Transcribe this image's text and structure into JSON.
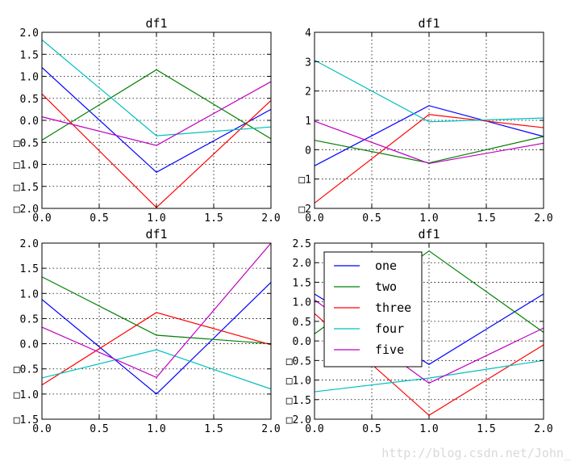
{
  "chart_data": [
    {
      "type": "line",
      "title": "df1",
      "xlabel": "",
      "ylabel": "",
      "x": [
        0,
        1,
        2
      ],
      "xlim": [
        0,
        2
      ],
      "ylim": [
        -2,
        2
      ],
      "xticks": [
        0,
        0.5,
        1,
        1.5,
        2
      ],
      "xtick_labels": [
        "0.0",
        "0.5",
        "1.0",
        "1.5",
        "2.0"
      ],
      "yticks": [
        -2,
        -1.5,
        -1,
        -0.5,
        0,
        0.5,
        1,
        1.5,
        2
      ],
      "ytick_labels": [
        "□2.0",
        "□1.5",
        "□1.0",
        "□0.5",
        "0.0",
        "0.5",
        "1.0",
        "1.5",
        "2.0"
      ],
      "grid": true,
      "series": [
        {
          "name": "one",
          "values": [
            1.2,
            -1.18,
            0.25
          ]
        },
        {
          "name": "two",
          "values": [
            -0.45,
            1.15,
            -0.42
          ]
        },
        {
          "name": "three",
          "values": [
            0.6,
            -1.98,
            0.45
          ]
        },
        {
          "name": "four",
          "values": [
            1.83,
            -0.35,
            -0.15
          ]
        },
        {
          "name": "five",
          "values": [
            0.08,
            -0.57,
            0.88
          ]
        }
      ]
    },
    {
      "type": "line",
      "title": "df1",
      "xlabel": "",
      "ylabel": "",
      "x": [
        0,
        1,
        2
      ],
      "xlim": [
        0,
        2
      ],
      "ylim": [
        -2,
        4
      ],
      "xticks": [
        0,
        0.5,
        1,
        1.5,
        2
      ],
      "xtick_labels": [
        "0.0",
        "0.5",
        "1.0",
        "1.5",
        "2.0"
      ],
      "yticks": [
        -2,
        -1,
        0,
        1,
        2,
        3,
        4
      ],
      "ytick_labels": [
        "□2",
        "□1",
        "0",
        "1",
        "2",
        "3",
        "4"
      ],
      "grid": true,
      "series": [
        {
          "name": "one",
          "values": [
            -0.55,
            1.5,
            0.45
          ]
        },
        {
          "name": "two",
          "values": [
            0.32,
            -0.45,
            0.45
          ]
        },
        {
          "name": "three",
          "values": [
            -1.82,
            1.2,
            0.75
          ]
        },
        {
          "name": "four",
          "values": [
            3.05,
            0.95,
            1.08
          ]
        },
        {
          "name": "five",
          "values": [
            0.97,
            -0.47,
            0.22
          ]
        }
      ]
    },
    {
      "type": "line",
      "title": "df1",
      "xlabel": "",
      "ylabel": "",
      "x": [
        0,
        1,
        2
      ],
      "xlim": [
        0,
        2
      ],
      "ylim": [
        -1.5,
        2
      ],
      "xticks": [
        0,
        0.5,
        1,
        1.5,
        2
      ],
      "xtick_labels": [
        "0.0",
        "0.5",
        "1.0",
        "1.5",
        "2.0"
      ],
      "yticks": [
        -1.5,
        -1,
        -0.5,
        0,
        0.5,
        1,
        1.5,
        2
      ],
      "ytick_labels": [
        "□1.5",
        "□1.0",
        "□0.5",
        "0.0",
        "0.5",
        "1.0",
        "1.5",
        "2.0"
      ],
      "grid": true,
      "series": [
        {
          "name": "one",
          "values": [
            0.88,
            -1.0,
            1.22
          ]
        },
        {
          "name": "two",
          "values": [
            1.33,
            0.17,
            0.0
          ]
        },
        {
          "name": "three",
          "values": [
            -0.82,
            0.62,
            -0.02
          ]
        },
        {
          "name": "four",
          "values": [
            -0.68,
            -0.12,
            -0.9
          ]
        },
        {
          "name": "five",
          "values": [
            0.33,
            -0.67,
            2.0
          ]
        }
      ]
    },
    {
      "type": "line",
      "title": "df1",
      "xlabel": "",
      "ylabel": "",
      "x": [
        0,
        1,
        2
      ],
      "xlim": [
        0,
        2
      ],
      "ylim": [
        -2,
        2.5
      ],
      "xticks": [
        0,
        0.5,
        1,
        1.5,
        2
      ],
      "xtick_labels": [
        "0.0",
        "0.5",
        "1.0",
        "1.5",
        "2.0"
      ],
      "yticks": [
        -2,
        -1.5,
        -1,
        -0.5,
        0,
        0.5,
        1,
        1.5,
        2,
        2.5
      ],
      "ytick_labels": [
        "□2.0",
        "□1.5",
        "□1.0",
        "□0.5",
        "0.0",
        "0.5",
        "1.0",
        "1.5",
        "2.0",
        "2.5"
      ],
      "grid": true,
      "legend": {
        "position": "upper-left",
        "entries": [
          "one",
          "two",
          "three",
          "four",
          "five"
        ]
      },
      "series": [
        {
          "name": "one",
          "values": [
            1.2,
            -0.6,
            1.2
          ]
        },
        {
          "name": "two",
          "values": [
            0.18,
            2.3,
            0.22
          ]
        },
        {
          "name": "three",
          "values": [
            0.7,
            -1.9,
            -0.1
          ]
        },
        {
          "name": "four",
          "values": [
            -1.3,
            -0.95,
            -0.5
          ]
        },
        {
          "name": "five",
          "values": [
            1.05,
            -1.08,
            0.33
          ]
        }
      ]
    }
  ],
  "colors": {
    "one": "#0000ff",
    "two": "#008000",
    "three": "#ff0000",
    "four": "#00bfbf",
    "five": "#bf00bf"
  },
  "watermark": "http://blog.csdn.net/John_"
}
